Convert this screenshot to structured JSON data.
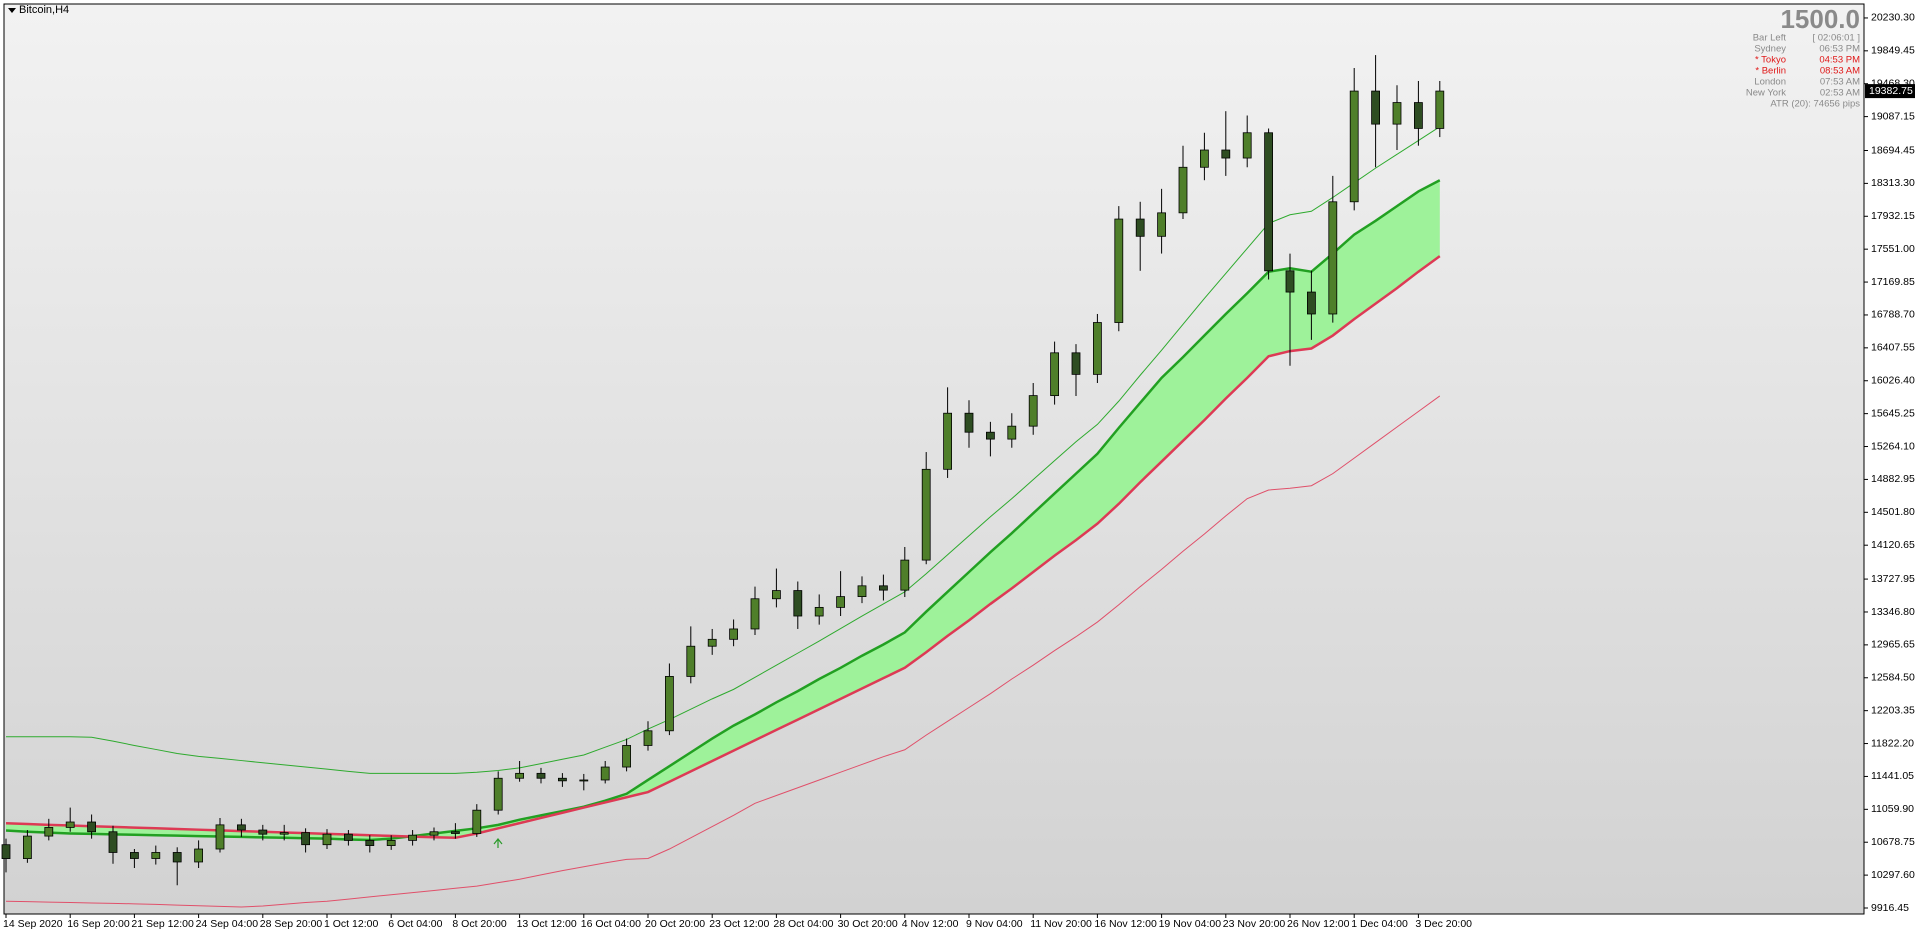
{
  "chart_data": {
    "type": "candlestick",
    "title": "Bitcoin,H4",
    "categories": [
      "14 Sep 2020",
      null,
      null,
      "16 Sep 20:00",
      null,
      null,
      "21 Sep 12:00",
      null,
      null,
      "24 Sep 04:00",
      null,
      null,
      "28 Sep 20:00",
      null,
      null,
      "1 Oct 12:00",
      null,
      null,
      "6 Oct 04:00",
      null,
      null,
      "8 Oct 20:00",
      null,
      null,
      "13 Oct 12:00",
      null,
      null,
      "16 Oct 04:00",
      null,
      null,
      "20 Oct 20:00",
      null,
      null,
      "23 Oct 12:00",
      null,
      null,
      "28 Oct 04:00",
      null,
      null,
      "30 Oct 20:00",
      null,
      null,
      "4 Nov 12:00",
      null,
      null,
      "9 Nov 04:00",
      null,
      null,
      "11 Nov 20:00",
      null,
      null,
      "16 Nov 12:00",
      null,
      null,
      "19 Nov 04:00",
      null,
      null,
      "23 Nov 20:00",
      null,
      null,
      "26 Nov 12:00",
      null,
      null,
      "1 Dec 04:00",
      null,
      null,
      "3 Dec 20:00",
      null
    ],
    "open": [
      10650,
      10489,
      10750,
      10850,
      10913,
      10800,
      10560,
      10490,
      10560,
      10450,
      10600,
      10880,
      10820,
      10772,
      10790,
      10650,
      10772,
      10700,
      10640,
      10700,
      10760,
      10800,
      10780,
      11050,
      11420,
      11477,
      11420,
      11390,
      11400,
      11550,
      11800,
      11970,
      12600,
      12950,
      13030,
      13150,
      13500,
      13595,
      13300,
      13400,
      13525,
      13650,
      13600,
      13948,
      15000,
      15650,
      15430,
      15350,
      15500,
      15854,
      16350,
      16100,
      16701,
      17900,
      17700,
      17972,
      18500,
      18700,
      18607,
      18900,
      17300,
      17054,
      16800,
      18100,
      19383,
      19000,
      19250,
      18950
    ],
    "high": [
      10720,
      10820,
      10950,
      11080,
      11000,
      10870,
      10600,
      10640,
      10620,
      10700,
      10960,
      10950,
      10880,
      10880,
      10840,
      10830,
      10820,
      10760,
      10760,
      10820,
      10850,
      10900,
      11120,
      11500,
      11620,
      11540,
      11480,
      11470,
      11620,
      11880,
      12080,
      12750,
      13180,
      13150,
      13260,
      13640,
      13850,
      13700,
      13550,
      13820,
      13760,
      13780,
      14100,
      15200,
      15950,
      15800,
      15550,
      15650,
      16000,
      16480,
      16450,
      16800,
      18050,
      18100,
      18250,
      18750,
      18900,
      19150,
      19100,
      18950,
      17500,
      17300,
      18400,
      19650,
      19800,
      19450,
      19500,
      19500
    ],
    "low": [
      10330,
      10440,
      10700,
      10800,
      10720,
      10430,
      10380,
      10420,
      10180,
      10380,
      10560,
      10740,
      10700,
      10700,
      10560,
      10600,
      10640,
      10560,
      10590,
      10640,
      10700,
      10720,
      10740,
      11000,
      11380,
      11360,
      11320,
      11280,
      11360,
      11500,
      11740,
      11920,
      12520,
      12850,
      12950,
      13080,
      13400,
      13150,
      13200,
      13300,
      13450,
      13480,
      13520,
      13900,
      14900,
      15250,
      15150,
      15250,
      15400,
      15750,
      15850,
      16000,
      16600,
      17300,
      17500,
      17900,
      18350,
      18400,
      18500,
      17200,
      16200,
      16500,
      16700,
      18000,
      18500,
      18700,
      18750,
      18850
    ],
    "close": [
      10489,
      10750,
      10850,
      10913,
      10800,
      10560,
      10490,
      10560,
      10450,
      10600,
      10880,
      10820,
      10772,
      10790,
      10650,
      10772,
      10700,
      10640,
      10700,
      10760,
      10800,
      10780,
      11050,
      11420,
      11477,
      11420,
      11390,
      11400,
      11550,
      11800,
      11970,
      12600,
      12950,
      13030,
      13150,
      13500,
      13595,
      13300,
      13400,
      13525,
      13650,
      13600,
      13948,
      15000,
      15650,
      15430,
      15350,
      15500,
      15854,
      16350,
      16100,
      16701,
      17900,
      17700,
      17972,
      18500,
      18700,
      18607,
      18900,
      17300,
      17054,
      16800,
      18100,
      19383,
      19000,
      19250,
      18950,
      19383
    ],
    "up_color": "#4f7f2a",
    "down_color": "#2e4d22",
    "band_fill": "#9ef29a",
    "series": [
      {
        "color": "#2eaa2e",
        "width": 1,
        "values": [
          11901,
          11901,
          11901,
          11901,
          11895,
          11850,
          11800,
          11754,
          11707,
          11674,
          11650,
          11625,
          11600,
          11575,
          11550,
          11526,
          11500,
          11477,
          11477,
          11477,
          11477,
          11477,
          11490,
          11510,
          11540,
          11590,
          11640,
          11690,
          11780,
          11870,
          11990,
          12100,
          12220,
          12340,
          12450,
          12590,
          12730,
          12870,
          13010,
          13155,
          13300,
          13440,
          13580,
          13790,
          14010,
          14230,
          14450,
          14660,
          14880,
          15100,
          15320,
          15520,
          15790,
          16090,
          16380,
          16680,
          16980,
          17270,
          17560,
          17850,
          17950,
          17990,
          18150,
          18320,
          18490,
          18650,
          18810,
          18970
        ]
      },
      {
        "color": "#22a022",
        "width": 2.5,
        "values": [
          10814,
          10800,
          10790,
          10780,
          10775,
          10770,
          10765,
          10760,
          10755,
          10750,
          10745,
          10740,
          10735,
          10730,
          10725,
          10720,
          10710,
          10705,
          10720,
          10750,
          10780,
          10810,
          10840,
          10880,
          10940,
          10990,
          11040,
          11090,
          11160,
          11240,
          11400,
          11560,
          11720,
          11880,
          12030,
          12160,
          12300,
          12430,
          12570,
          12700,
          12840,
          12970,
          13110,
          13350,
          13580,
          13810,
          14040,
          14260,
          14490,
          14720,
          14950,
          15180,
          15480,
          15770,
          16060,
          16300,
          16550,
          16800,
          17040,
          17290,
          17330,
          17290,
          17500,
          17720,
          17880,
          18050,
          18220,
          18350
        ]
      },
      {
        "color": "#dd3a55",
        "width": 2.5,
        "values": [
          10899,
          10890,
          10880,
          10872,
          10864,
          10856,
          10848,
          10840,
          10832,
          10824,
          10816,
          10808,
          10800,
          10792,
          10784,
          10776,
          10768,
          10760,
          10752,
          10744,
          10737,
          10730,
          10780,
          10840,
          10900,
          10960,
          11020,
          11080,
          11140,
          11200,
          11260,
          11380,
          11500,
          11620,
          11740,
          11860,
          11980,
          12100,
          12220,
          12340,
          12460,
          12580,
          12700,
          12880,
          13070,
          13250,
          13440,
          13620,
          13810,
          14000,
          14180,
          14370,
          14600,
          14850,
          15090,
          15330,
          15570,
          15820,
          16060,
          16310,
          16370,
          16400,
          16550,
          16740,
          16920,
          17100,
          17290,
          17470
        ]
      },
      {
        "color": "#e0506a",
        "width": 1,
        "values": [
          9995,
          9990,
          9985,
          9980,
          9975,
          9970,
          9965,
          9958,
          9950,
          9942,
          9935,
          9928,
          9940,
          9960,
          9980,
          9995,
          10020,
          10045,
          10070,
          10095,
          10120,
          10145,
          10170,
          10210,
          10250,
          10300,
          10350,
          10395,
          10440,
          10480,
          10490,
          10600,
          10730,
          10860,
          10990,
          11130,
          11220,
          11310,
          11400,
          11490,
          11580,
          11670,
          11750,
          11920,
          12080,
          12240,
          12400,
          12570,
          12730,
          12900,
          13060,
          13230,
          13430,
          13640,
          13840,
          14050,
          14250,
          14460,
          14660,
          14760,
          14780,
          14810,
          14950,
          15130,
          15310,
          15490,
          15670,
          15850
        ]
      }
    ],
    "ylim": [
      9847,
      20392
    ],
    "yticks": [
      {
        "value": 20230.3,
        "label": "20230.30"
      },
      19849.45,
      {
        "value": 19468.3,
        "label": "19468.30"
      },
      19087.15,
      18694.45,
      {
        "value": 18313.3,
        "label": "18313.30"
      },
      17932.15,
      {
        "value": 17551,
        "label": "17551.00"
      },
      17169.85,
      {
        "value": 16788.7,
        "label": "16788.70"
      },
      16407.55,
      {
        "value": 16026.4,
        "label": "16026.40"
      },
      15645.25,
      {
        "value": 15264.1,
        "label": "15264.10"
      },
      14882.95,
      {
        "value": 14501.8,
        "label": "14501.80"
      },
      14120.65,
      13727.95,
      {
        "value": 13346.8,
        "label": "13346.80"
      },
      12965.65,
      {
        "value": 12584.5,
        "label": "12584.50"
      },
      12203.35,
      {
        "value": 11822.2,
        "label": "11822.20"
      },
      11441.05,
      {
        "value": 11059.9,
        "label": "11059.90"
      },
      10678.75,
      {
        "value": 10297.6,
        "label": "10297.60"
      },
      9916.45
    ],
    "grid": false,
    "last_price": 19382.75,
    "info_panel": {
      "headline": "1500.0",
      "rows": [
        {
          "label": "Bar Left",
          "value": "[ 02:06:01 ]",
          "color": "#8a8a8a"
        },
        {
          "label": "Sydney",
          "value": "06:53 PM",
          "color": "#8a8a8a"
        },
        {
          "label": "* Tokyo",
          "value": "04:53 PM",
          "color": "#e01818"
        },
        {
          "label": "* Berlin",
          "value": "08:53 AM",
          "color": "#e01818"
        },
        {
          "label": "London",
          "value": "07:53 AM",
          "color": "#8a8a8a"
        },
        {
          "label": "New York",
          "value": "02:53 AM",
          "color": "#8a8a8a"
        }
      ],
      "footer": "ATR (20): 74656 pips"
    }
  }
}
